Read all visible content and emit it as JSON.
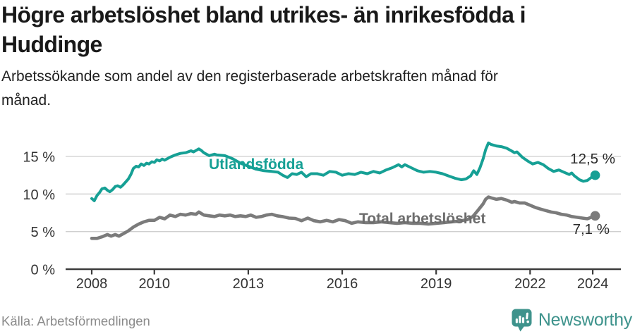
{
  "header": {
    "title_lines": [
      "Högre arbetslöshet bland utrikes- än inrikesfödda i",
      "Huddinge"
    ],
    "subtitle_lines": [
      "Arbetssökande som andel av den registerbaserade arbetskraften månad för",
      "månad."
    ]
  },
  "chart_data": {
    "type": "line",
    "title": "Högre arbetslöshet bland utrikes- än inrikesfödda i Huddinge",
    "subtitle": "Arbetssökande som andel av den registerbaserade arbetskraften månad för månad.",
    "x_unit": "year (monthly data)",
    "xlim": [
      2007.2,
      2024.9
    ],
    "ylim": [
      0,
      17.5
    ],
    "grid": "horizontal",
    "legend_position": "inline-labels",
    "yticks": [
      {
        "value": 0,
        "label": "0 %"
      },
      {
        "value": 5,
        "label": "5 %"
      },
      {
        "value": 10,
        "label": "10 %"
      },
      {
        "value": 15,
        "label": "15 %"
      }
    ],
    "xticks": [
      {
        "value": 2008,
        "label": "2008"
      },
      {
        "value": 2010,
        "label": "2010"
      },
      {
        "value": 2013,
        "label": "2013"
      },
      {
        "value": 2016,
        "label": "2016"
      },
      {
        "value": 2019,
        "label": "2019"
      },
      {
        "value": 2022,
        "label": "2022"
      },
      {
        "value": 2024,
        "label": "2024"
      }
    ],
    "series": [
      {
        "name": "Utlandsfödda",
        "color": "#16a095",
        "end_label": "12,5 %",
        "end_value": 12.5,
        "points": [
          [
            2008.0,
            9.4
          ],
          [
            2008.08,
            9.1
          ],
          [
            2008.17,
            9.8
          ],
          [
            2008.25,
            10.2
          ],
          [
            2008.33,
            10.7
          ],
          [
            2008.42,
            10.8
          ],
          [
            2008.5,
            10.5
          ],
          [
            2008.58,
            10.3
          ],
          [
            2008.67,
            10.6
          ],
          [
            2008.75,
            11.0
          ],
          [
            2008.83,
            11.1
          ],
          [
            2008.92,
            10.9
          ],
          [
            2009.0,
            11.2
          ],
          [
            2009.17,
            12.0
          ],
          [
            2009.25,
            12.6
          ],
          [
            2009.33,
            13.4
          ],
          [
            2009.42,
            13.7
          ],
          [
            2009.5,
            13.6
          ],
          [
            2009.58,
            14.0
          ],
          [
            2009.67,
            13.8
          ],
          [
            2009.75,
            14.1
          ],
          [
            2009.83,
            14.0
          ],
          [
            2009.92,
            14.3
          ],
          [
            2010.0,
            14.2
          ],
          [
            2010.08,
            14.55
          ],
          [
            2010.17,
            14.4
          ],
          [
            2010.25,
            14.65
          ],
          [
            2010.33,
            14.5
          ],
          [
            2010.5,
            14.9
          ],
          [
            2010.67,
            15.2
          ],
          [
            2010.83,
            15.4
          ],
          [
            2011.0,
            15.5
          ],
          [
            2011.17,
            15.75
          ],
          [
            2011.25,
            15.6
          ],
          [
            2011.42,
            16.0
          ],
          [
            2011.5,
            15.8
          ],
          [
            2011.58,
            15.5
          ],
          [
            2011.75,
            15.1
          ],
          [
            2011.92,
            15.3
          ],
          [
            2012.0,
            15.2
          ],
          [
            2012.25,
            15.1
          ],
          [
            2012.5,
            14.7
          ],
          [
            2012.75,
            14.1
          ],
          [
            2013.0,
            13.7
          ],
          [
            2013.25,
            13.3
          ],
          [
            2013.5,
            13.1
          ],
          [
            2013.75,
            13.0
          ],
          [
            2013.95,
            12.9
          ],
          [
            2014.1,
            12.5
          ],
          [
            2014.25,
            12.2
          ],
          [
            2014.4,
            12.7
          ],
          [
            2014.55,
            12.6
          ],
          [
            2014.7,
            12.9
          ],
          [
            2014.85,
            12.3
          ],
          [
            2015.0,
            12.7
          ],
          [
            2015.2,
            12.7
          ],
          [
            2015.4,
            12.5
          ],
          [
            2015.6,
            13.0
          ],
          [
            2015.8,
            12.9
          ],
          [
            2016.0,
            12.5
          ],
          [
            2016.2,
            12.7
          ],
          [
            2016.4,
            12.6
          ],
          [
            2016.6,
            12.9
          ],
          [
            2016.8,
            12.7
          ],
          [
            2017.0,
            13.0
          ],
          [
            2017.2,
            12.8
          ],
          [
            2017.4,
            13.2
          ],
          [
            2017.6,
            13.5
          ],
          [
            2017.8,
            13.9
          ],
          [
            2017.9,
            13.6
          ],
          [
            2018.0,
            13.9
          ],
          [
            2018.2,
            13.5
          ],
          [
            2018.4,
            13.1
          ],
          [
            2018.6,
            12.9
          ],
          [
            2018.8,
            13.0
          ],
          [
            2019.0,
            12.9
          ],
          [
            2019.2,
            12.7
          ],
          [
            2019.4,
            12.4
          ],
          [
            2019.6,
            12.1
          ],
          [
            2019.8,
            11.9
          ],
          [
            2019.95,
            12.0
          ],
          [
            2020.1,
            12.4
          ],
          [
            2020.2,
            13.1
          ],
          [
            2020.3,
            12.6
          ],
          [
            2020.4,
            13.5
          ],
          [
            2020.5,
            14.7
          ],
          [
            2020.58,
            15.9
          ],
          [
            2020.67,
            16.8
          ],
          [
            2020.75,
            16.6
          ],
          [
            2020.92,
            16.4
          ],
          [
            2021.08,
            16.3
          ],
          [
            2021.25,
            16.1
          ],
          [
            2021.42,
            15.7
          ],
          [
            2021.5,
            15.5
          ],
          [
            2021.58,
            15.6
          ],
          [
            2021.75,
            14.9
          ],
          [
            2021.92,
            14.4
          ],
          [
            2022.08,
            14.0
          ],
          [
            2022.25,
            14.2
          ],
          [
            2022.42,
            13.9
          ],
          [
            2022.58,
            13.4
          ],
          [
            2022.75,
            13.0
          ],
          [
            2022.92,
            13.2
          ],
          [
            2023.08,
            12.9
          ],
          [
            2023.25,
            12.6
          ],
          [
            2023.33,
            12.8
          ],
          [
            2023.42,
            12.4
          ],
          [
            2023.58,
            11.9
          ],
          [
            2023.7,
            11.7
          ],
          [
            2023.83,
            11.8
          ],
          [
            2023.95,
            12.2
          ],
          [
            2024.08,
            12.5
          ]
        ]
      },
      {
        "name": "Total arbetslöshet",
        "color": "#7b7b7b",
        "end_label": "7,1 %",
        "end_value": 7.1,
        "points": [
          [
            2008.0,
            4.1
          ],
          [
            2008.17,
            4.1
          ],
          [
            2008.33,
            4.3
          ],
          [
            2008.5,
            4.6
          ],
          [
            2008.62,
            4.4
          ],
          [
            2008.75,
            4.6
          ],
          [
            2008.87,
            4.4
          ],
          [
            2009.0,
            4.7
          ],
          [
            2009.17,
            5.1
          ],
          [
            2009.33,
            5.6
          ],
          [
            2009.5,
            6.0
          ],
          [
            2009.67,
            6.3
          ],
          [
            2009.83,
            6.5
          ],
          [
            2010.0,
            6.5
          ],
          [
            2010.17,
            6.9
          ],
          [
            2010.33,
            6.7
          ],
          [
            2010.5,
            7.2
          ],
          [
            2010.67,
            7.0
          ],
          [
            2010.83,
            7.3
          ],
          [
            2011.0,
            7.2
          ],
          [
            2011.17,
            7.4
          ],
          [
            2011.33,
            7.3
          ],
          [
            2011.42,
            7.6
          ],
          [
            2011.58,
            7.2
          ],
          [
            2011.75,
            7.1
          ],
          [
            2011.92,
            7.0
          ],
          [
            2012.08,
            7.2
          ],
          [
            2012.25,
            7.1
          ],
          [
            2012.42,
            7.2
          ],
          [
            2012.58,
            7.0
          ],
          [
            2012.75,
            7.1
          ],
          [
            2012.92,
            7.0
          ],
          [
            2013.08,
            7.2
          ],
          [
            2013.25,
            6.9
          ],
          [
            2013.42,
            7.0
          ],
          [
            2013.58,
            7.2
          ],
          [
            2013.75,
            7.3
          ],
          [
            2013.92,
            7.1
          ],
          [
            2014.08,
            7.0
          ],
          [
            2014.3,
            6.8
          ],
          [
            2014.5,
            6.75
          ],
          [
            2014.7,
            6.45
          ],
          [
            2014.9,
            6.8
          ],
          [
            2015.1,
            6.45
          ],
          [
            2015.3,
            6.3
          ],
          [
            2015.5,
            6.5
          ],
          [
            2015.7,
            6.3
          ],
          [
            2015.9,
            6.6
          ],
          [
            2016.1,
            6.45
          ],
          [
            2016.3,
            6.1
          ],
          [
            2016.5,
            6.3
          ],
          [
            2016.75,
            6.2
          ],
          [
            2017.0,
            6.2
          ],
          [
            2017.25,
            6.3
          ],
          [
            2017.5,
            6.2
          ],
          [
            2017.75,
            6.1
          ],
          [
            2018.0,
            6.2
          ],
          [
            2018.25,
            6.1
          ],
          [
            2018.5,
            6.1
          ],
          [
            2018.75,
            6.0
          ],
          [
            2019.0,
            6.1
          ],
          [
            2019.25,
            6.2
          ],
          [
            2019.5,
            6.3
          ],
          [
            2019.75,
            6.4
          ],
          [
            2020.0,
            6.6
          ],
          [
            2020.17,
            7.0
          ],
          [
            2020.33,
            7.8
          ],
          [
            2020.5,
            8.7
          ],
          [
            2020.58,
            9.3
          ],
          [
            2020.67,
            9.6
          ],
          [
            2020.75,
            9.5
          ],
          [
            2020.92,
            9.3
          ],
          [
            2021.08,
            9.4
          ],
          [
            2021.25,
            9.2
          ],
          [
            2021.42,
            8.9
          ],
          [
            2021.5,
            9.0
          ],
          [
            2021.67,
            8.8
          ],
          [
            2021.83,
            8.8
          ],
          [
            2022.0,
            8.5
          ],
          [
            2022.17,
            8.2
          ],
          [
            2022.33,
            8.0
          ],
          [
            2022.5,
            7.8
          ],
          [
            2022.67,
            7.6
          ],
          [
            2022.83,
            7.5
          ],
          [
            2023.0,
            7.3
          ],
          [
            2023.17,
            7.2
          ],
          [
            2023.33,
            7.0
          ],
          [
            2023.5,
            6.9
          ],
          [
            2023.67,
            6.8
          ],
          [
            2023.83,
            6.7
          ],
          [
            2023.95,
            6.9
          ],
          [
            2024.08,
            7.1
          ]
        ]
      }
    ]
  },
  "footer": {
    "source": "Källa: Arbetsförmedlingen",
    "logo_text": "Newsworthy",
    "logo_color": "#3e938c"
  }
}
